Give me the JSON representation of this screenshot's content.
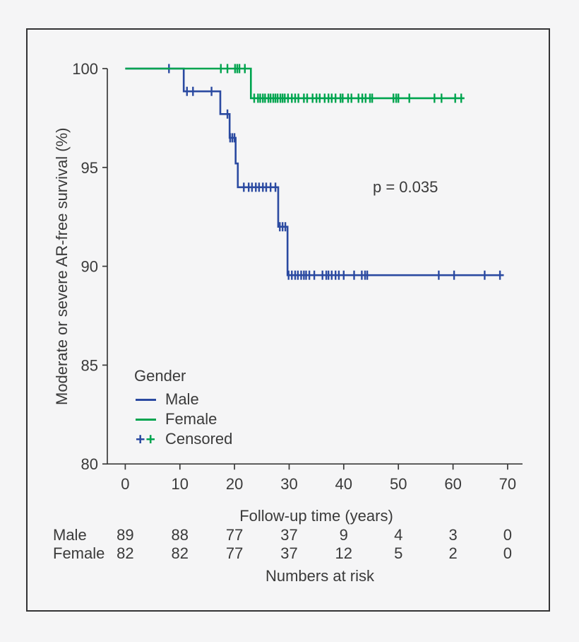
{
  "figure": {
    "background": "#f5f5f6",
    "frame_color": "#333335",
    "axis_color": "#3a3a3a",
    "text_color": "#3a3a3a"
  },
  "chart_data": {
    "type": "line",
    "subtype": "kaplan-meier-step",
    "title": "",
    "xlabel": "Follow-up time (years)",
    "ylabel": "Moderate or severe AR-free survival (%)",
    "xlim": [
      0,
      73
    ],
    "ylim": [
      80,
      100
    ],
    "xticks": [
      0,
      10,
      20,
      30,
      40,
      50,
      60,
      70
    ],
    "yticks": [
      80,
      85,
      90,
      95,
      100
    ],
    "grid": false,
    "annotation": "p = 0.035",
    "legend": {
      "title": "Gender",
      "position": "lower-left",
      "censored_label": "Censored",
      "censored_symbol": "+"
    },
    "series": [
      {
        "name": "Male",
        "color": "#2b4aa1",
        "steps": [
          [
            0,
            100
          ],
          [
            10.7,
            98.85
          ],
          [
            17.4,
            97.7
          ],
          [
            19.1,
            96.5
          ],
          [
            20.2,
            95.2
          ],
          [
            20.6,
            94.0
          ],
          [
            28.0,
            92.0
          ],
          [
            29.7,
            89.55
          ]
        ],
        "end_time": 69.3,
        "censored": [
          [
            8,
            100
          ],
          [
            11.3,
            98.85
          ],
          [
            12.4,
            98.85
          ],
          [
            15.8,
            98.85
          ],
          [
            18.7,
            97.7
          ],
          [
            19.2,
            96.5
          ],
          [
            19.6,
            96.5
          ],
          [
            20.0,
            96.5
          ],
          [
            21.7,
            94
          ],
          [
            22.6,
            94
          ],
          [
            23.2,
            94
          ],
          [
            23.9,
            94
          ],
          [
            24.5,
            94
          ],
          [
            25.2,
            94
          ],
          [
            25.8,
            94
          ],
          [
            26.6,
            94
          ],
          [
            27.5,
            94
          ],
          [
            28.3,
            92
          ],
          [
            28.8,
            92
          ],
          [
            29.3,
            92
          ],
          [
            29.9,
            89.55
          ],
          [
            30.5,
            89.55
          ],
          [
            31.1,
            89.55
          ],
          [
            31.6,
            89.55
          ],
          [
            32.2,
            89.55
          ],
          [
            32.7,
            89.55
          ],
          [
            33.1,
            89.55
          ],
          [
            33.7,
            89.55
          ],
          [
            34.6,
            89.55
          ],
          [
            36.1,
            89.55
          ],
          [
            36.8,
            89.55
          ],
          [
            37.2,
            89.55
          ],
          [
            37.8,
            89.55
          ],
          [
            38.5,
            89.55
          ],
          [
            39.1,
            89.55
          ],
          [
            40.0,
            89.55
          ],
          [
            41.9,
            89.55
          ],
          [
            43.3,
            89.55
          ],
          [
            43.9,
            89.55
          ],
          [
            44.3,
            89.55
          ],
          [
            57.4,
            89.55
          ],
          [
            60.2,
            89.55
          ],
          [
            65.8,
            89.55
          ],
          [
            68.6,
            89.55
          ]
        ]
      },
      {
        "name": "Female",
        "color": "#00a44f",
        "steps": [
          [
            0,
            100
          ],
          [
            23.0,
            98.5
          ]
        ],
        "end_time": 62.1,
        "censored": [
          [
            17.5,
            100
          ],
          [
            18.7,
            100
          ],
          [
            20.1,
            100
          ],
          [
            20.5,
            100
          ],
          [
            20.9,
            100
          ],
          [
            21.9,
            100
          ],
          [
            23.6,
            98.5
          ],
          [
            24.3,
            98.5
          ],
          [
            24.7,
            98.5
          ],
          [
            25.2,
            98.5
          ],
          [
            25.6,
            98.5
          ],
          [
            26.2,
            98.5
          ],
          [
            26.6,
            98.5
          ],
          [
            27.1,
            98.5
          ],
          [
            27.5,
            98.5
          ],
          [
            27.9,
            98.5
          ],
          [
            28.4,
            98.5
          ],
          [
            28.8,
            98.5
          ],
          [
            29.2,
            98.5
          ],
          [
            29.8,
            98.5
          ],
          [
            30.5,
            98.5
          ],
          [
            31.1,
            98.5
          ],
          [
            31.7,
            98.5
          ],
          [
            32.7,
            98.5
          ],
          [
            33.3,
            98.5
          ],
          [
            34.3,
            98.5
          ],
          [
            35.0,
            98.5
          ],
          [
            35.6,
            98.5
          ],
          [
            36.5,
            98.5
          ],
          [
            37.2,
            98.5
          ],
          [
            37.8,
            98.5
          ],
          [
            38.5,
            98.5
          ],
          [
            39.4,
            98.5
          ],
          [
            39.8,
            98.5
          ],
          [
            40.8,
            98.5
          ],
          [
            41.4,
            98.5
          ],
          [
            42.7,
            98.5
          ],
          [
            43.4,
            98.5
          ],
          [
            44.0,
            98.5
          ],
          [
            44.8,
            98.5
          ],
          [
            45.2,
            98.5
          ],
          [
            49.1,
            98.5
          ],
          [
            49.6,
            98.5
          ],
          [
            50.0,
            98.5
          ],
          [
            52.0,
            98.5
          ],
          [
            56.6,
            98.5
          ],
          [
            57.9,
            98.5
          ],
          [
            60.4,
            98.5
          ],
          [
            61.5,
            98.5
          ]
        ]
      }
    ],
    "risk_table": {
      "title": "Numbers at risk",
      "times": [
        0,
        10,
        20,
        30,
        40,
        50,
        60,
        70
      ],
      "rows": [
        {
          "name": "Male",
          "values": [
            89,
            88,
            77,
            37,
            9,
            4,
            3,
            0
          ]
        },
        {
          "name": "Female",
          "values": [
            82,
            82,
            77,
            37,
            12,
            5,
            2,
            0
          ]
        }
      ]
    }
  }
}
